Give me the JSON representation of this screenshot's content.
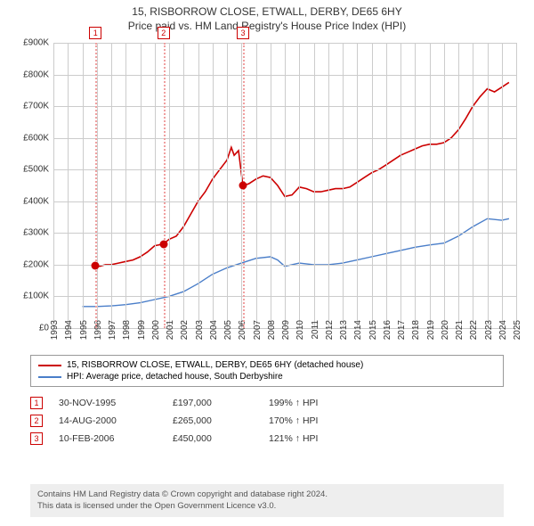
{
  "title": {
    "line1": "15, RISBORROW CLOSE, ETWALL, DERBY, DE65 6HY",
    "line2": "Price paid vs. HM Land Registry's House Price Index (HPI)"
  },
  "chart": {
    "type": "line",
    "background_color": "#ffffff",
    "grid_color": "#cccccc",
    "x": {
      "min": 1993,
      "max": 2025,
      "ticks": [
        1993,
        1994,
        1995,
        1996,
        1997,
        1998,
        1999,
        2000,
        2001,
        2002,
        2003,
        2004,
        2005,
        2006,
        2007,
        2008,
        2009,
        2010,
        2011,
        2012,
        2013,
        2014,
        2015,
        2016,
        2017,
        2018,
        2019,
        2020,
        2021,
        2022,
        2023,
        2024,
        2025
      ]
    },
    "y": {
      "min": 0,
      "max": 900000,
      "tick_step": 100000,
      "labels": [
        "£0",
        "£100K",
        "£200K",
        "£300K",
        "£400K",
        "£500K",
        "£600K",
        "£700K",
        "£800K",
        "£900K"
      ]
    },
    "series": [
      {
        "name": "property",
        "legend": "15, RISBORROW CLOSE, ETWALL, DERBY, DE65 6HY (detached house)",
        "color": "#cc0000",
        "line_width": 1.6,
        "data": [
          [
            1995.9,
            197000
          ],
          [
            1996.2,
            195000
          ],
          [
            1996.6,
            200000
          ],
          [
            1997.0,
            200000
          ],
          [
            1997.5,
            205000
          ],
          [
            1998.0,
            210000
          ],
          [
            1998.5,
            215000
          ],
          [
            1999.0,
            225000
          ],
          [
            1999.5,
            240000
          ],
          [
            2000.0,
            260000
          ],
          [
            2000.6,
            265000
          ],
          [
            2001.0,
            280000
          ],
          [
            2001.5,
            290000
          ],
          [
            2002.0,
            320000
          ],
          [
            2002.5,
            360000
          ],
          [
            2003.0,
            400000
          ],
          [
            2003.5,
            430000
          ],
          [
            2004.0,
            470000
          ],
          [
            2004.5,
            500000
          ],
          [
            2005.0,
            530000
          ],
          [
            2005.3,
            570000
          ],
          [
            2005.5,
            545000
          ],
          [
            2005.8,
            560000
          ],
          [
            2006.1,
            450000
          ],
          [
            2006.5,
            455000
          ],
          [
            2007.0,
            470000
          ],
          [
            2007.5,
            480000
          ],
          [
            2008.0,
            475000
          ],
          [
            2008.5,
            450000
          ],
          [
            2009.0,
            415000
          ],
          [
            2009.5,
            420000
          ],
          [
            2010.0,
            445000
          ],
          [
            2010.5,
            440000
          ],
          [
            2011.0,
            430000
          ],
          [
            2011.5,
            430000
          ],
          [
            2012.0,
            435000
          ],
          [
            2012.5,
            440000
          ],
          [
            2013.0,
            440000
          ],
          [
            2013.5,
            445000
          ],
          [
            2014.0,
            460000
          ],
          [
            2014.5,
            475000
          ],
          [
            2015.0,
            490000
          ],
          [
            2015.5,
            500000
          ],
          [
            2016.0,
            515000
          ],
          [
            2016.5,
            530000
          ],
          [
            2017.0,
            545000
          ],
          [
            2017.5,
            555000
          ],
          [
            2018.0,
            565000
          ],
          [
            2018.5,
            575000
          ],
          [
            2019.0,
            580000
          ],
          [
            2019.5,
            580000
          ],
          [
            2020.0,
            585000
          ],
          [
            2020.5,
            600000
          ],
          [
            2021.0,
            625000
          ],
          [
            2021.5,
            660000
          ],
          [
            2022.0,
            700000
          ],
          [
            2022.5,
            730000
          ],
          [
            2023.0,
            755000
          ],
          [
            2023.5,
            745000
          ],
          [
            2024.0,
            760000
          ],
          [
            2024.5,
            775000
          ]
        ]
      },
      {
        "name": "hpi",
        "legend": "HPI: Average price, detached house, South Derbyshire",
        "color": "#4a7ec9",
        "line_width": 1.4,
        "data": [
          [
            1995.0,
            68000
          ],
          [
            1996.0,
            68000
          ],
          [
            1997.0,
            70000
          ],
          [
            1998.0,
            74000
          ],
          [
            1999.0,
            80000
          ],
          [
            2000.0,
            90000
          ],
          [
            2001.0,
            100000
          ],
          [
            2002.0,
            115000
          ],
          [
            2003.0,
            140000
          ],
          [
            2004.0,
            170000
          ],
          [
            2005.0,
            190000
          ],
          [
            2006.0,
            205000
          ],
          [
            2007.0,
            220000
          ],
          [
            2008.0,
            225000
          ],
          [
            2008.5,
            215000
          ],
          [
            2009.0,
            195000
          ],
          [
            2010.0,
            205000
          ],
          [
            2011.0,
            200000
          ],
          [
            2012.0,
            200000
          ],
          [
            2013.0,
            205000
          ],
          [
            2014.0,
            215000
          ],
          [
            2015.0,
            225000
          ],
          [
            2016.0,
            235000
          ],
          [
            2017.0,
            245000
          ],
          [
            2018.0,
            255000
          ],
          [
            2019.0,
            262000
          ],
          [
            2020.0,
            268000
          ],
          [
            2021.0,
            290000
          ],
          [
            2022.0,
            320000
          ],
          [
            2023.0,
            345000
          ],
          [
            2024.0,
            340000
          ],
          [
            2024.5,
            345000
          ]
        ]
      }
    ],
    "markers": [
      {
        "n": "1",
        "x": 1995.91,
        "y": 197000,
        "line_color": "#f0a0a0"
      },
      {
        "n": "2",
        "x": 2000.62,
        "y": 265000,
        "line_color": "#f0a0a0"
      },
      {
        "n": "3",
        "x": 2006.11,
        "y": 450000,
        "line_color": "#f0a0a0"
      }
    ]
  },
  "legend": {
    "border_color": "#999999"
  },
  "sales": [
    {
      "n": "1",
      "date": "30-NOV-1995",
      "price": "£197,000",
      "pct": "199% ↑ HPI"
    },
    {
      "n": "2",
      "date": "14-AUG-2000",
      "price": "£265,000",
      "pct": "170% ↑ HPI"
    },
    {
      "n": "3",
      "date": "10-FEB-2006",
      "price": "£450,000",
      "pct": "121% ↑ HPI"
    }
  ],
  "attribution": {
    "line1": "Contains HM Land Registry data © Crown copyright and database right 2024.",
    "line2": "This data is licensed under the Open Government Licence v3.0.",
    "bg_color": "#eeeeee",
    "text_color": "#555555"
  }
}
